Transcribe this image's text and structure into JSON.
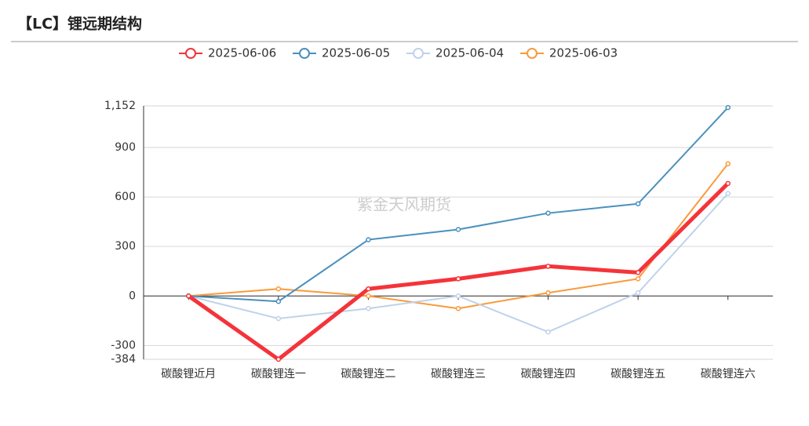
{
  "header": {
    "title": "【LC】锂远期结构"
  },
  "chart_data": {
    "type": "line",
    "watermark": "紫金天风期货",
    "categories": [
      "碳酸锂近月",
      "碳酸锂连一",
      "碳酸锂连二",
      "碳酸锂连三",
      "碳酸锂连四",
      "碳酸锂连五",
      "碳酸锂连六"
    ],
    "series": [
      {
        "name": "2025-06-06",
        "color": "#f5333a",
        "width": 5,
        "values": [
          0,
          -384,
          43,
          104,
          180,
          142,
          682
        ]
      },
      {
        "name": "2025-06-05",
        "color": "#4a90be",
        "width": 2,
        "values": [
          0,
          -33,
          341,
          403,
          502,
          559,
          1142
        ]
      },
      {
        "name": "2025-06-04",
        "color": "#bfd2ea",
        "width": 2,
        "values": [
          0,
          -137,
          -76,
          0,
          -218,
          19,
          621
        ]
      },
      {
        "name": "2025-06-03",
        "color": "#f99b3b",
        "width": 2,
        "values": [
          0,
          43,
          0,
          -76,
          19,
          104,
          801
        ]
      }
    ],
    "ylim": [
      -384,
      1152
    ],
    "yticks": [
      -384,
      -300,
      0,
      300,
      600,
      900,
      {
        "value": 1152,
        "label": "1,152"
      }
    ],
    "grid": true
  }
}
